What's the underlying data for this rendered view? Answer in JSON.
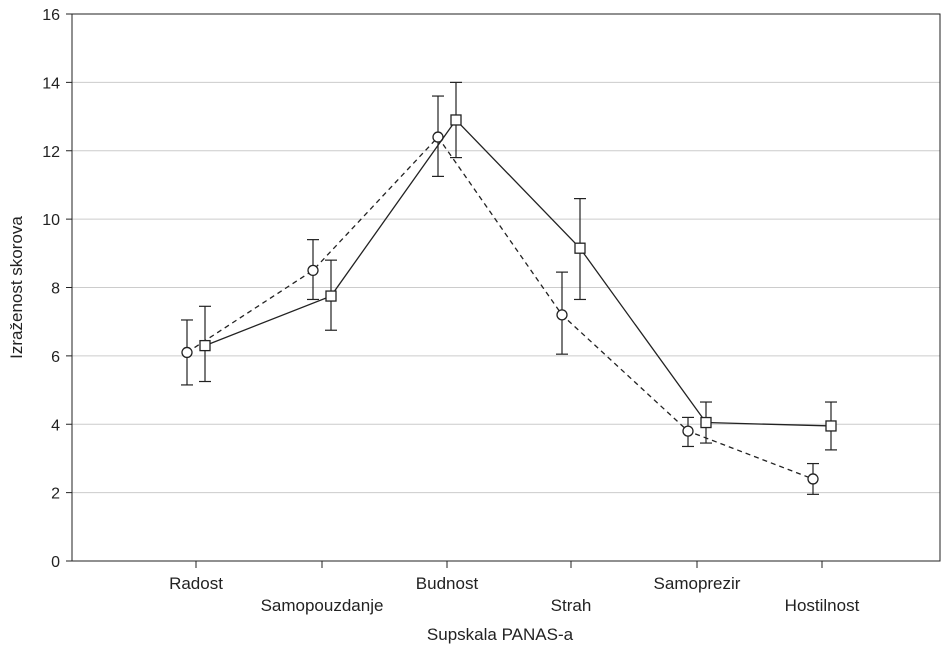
{
  "chart_data": {
    "type": "line",
    "title": "",
    "xlabel": "Supskala PANAS-a",
    "ylabel": "Izraženost skorova",
    "ylim": [
      0,
      16
    ],
    "yticks": [
      0,
      2,
      4,
      6,
      8,
      10,
      12,
      14,
      16
    ],
    "grid": true,
    "legend": "none",
    "categories": [
      "Radost",
      "Samopouzdanje",
      "Budnost",
      "Strah",
      "Samoprezir",
      "Hostilnost"
    ],
    "series": [
      {
        "marker": "circle",
        "line_style": "dashed",
        "color": "#222222",
        "values": [
          6.1,
          8.5,
          12.4,
          7.2,
          3.8,
          2.4
        ],
        "error_low": [
          5.15,
          7.65,
          11.25,
          6.05,
          3.35,
          1.95
        ],
        "error_high": [
          7.05,
          9.4,
          13.6,
          8.45,
          4.2,
          2.85
        ]
      },
      {
        "marker": "square",
        "line_style": "solid",
        "color": "#222222",
        "values": [
          6.3,
          7.75,
          12.9,
          9.15,
          4.05,
          3.95
        ],
        "error_low": [
          5.25,
          6.75,
          11.8,
          7.65,
          3.45,
          3.25
        ],
        "error_high": [
          7.45,
          8.8,
          14.0,
          10.6,
          4.65,
          4.65
        ]
      }
    ]
  }
}
